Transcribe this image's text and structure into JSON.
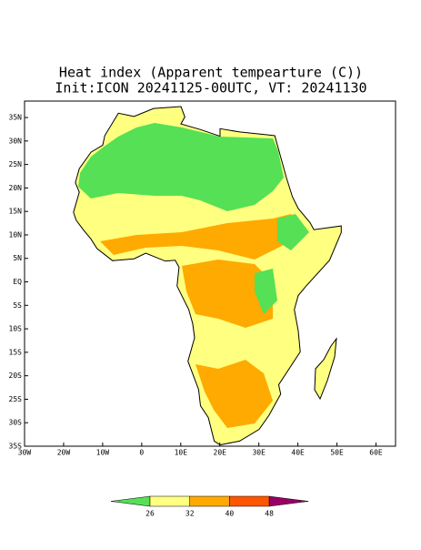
{
  "title": "Heat index (Apparent tempearture (C))",
  "subtitle": "Init:ICON 20241125-00UTC, VT: 20241130",
  "map": {
    "xlim": [
      -30,
      65
    ],
    "ylim": [
      -35,
      38.5
    ],
    "xticks": [
      {
        "value": -30,
        "label": "30W"
      },
      {
        "value": -20,
        "label": "20W"
      },
      {
        "value": -10,
        "label": "10W"
      },
      0,
      {
        "value": 10,
        "label": "10E"
      },
      {
        "value": 20,
        "label": "20E"
      },
      {
        "value": 30,
        "label": "30E"
      },
      {
        "value": 40,
        "label": "40E"
      },
      {
        "value": 50,
        "label": "50E"
      },
      {
        "value": 60,
        "label": "60E"
      }
    ],
    "yticks": [
      {
        "value": -35,
        "label": "35S"
      },
      {
        "value": -30,
        "label": "30S"
      },
      {
        "value": -25,
        "label": "25S"
      },
      {
        "value": -20,
        "label": "20S"
      },
      {
        "value": -15,
        "label": "15S"
      },
      {
        "value": -10,
        "label": "10S"
      },
      {
        "value": -5,
        "label": "5S"
      },
      {
        "value": 0,
        "label": "EQ"
      },
      {
        "value": 5,
        "label": "5N"
      },
      {
        "value": 10,
        "label": "10N"
      },
      {
        "value": 15,
        "label": "15N"
      },
      {
        "value": 20,
        "label": "20N"
      },
      {
        "value": 25,
        "label": "25N"
      },
      {
        "value": 30,
        "label": "30N"
      },
      {
        "value": 35,
        "label": "35N"
      }
    ]
  },
  "colorbar": {
    "ticks": [
      26,
      32,
      40,
      48
    ],
    "colors": [
      "#55e055",
      "#ffff80",
      "#ffaa00",
      "#ff5500",
      "#990066"
    ]
  }
}
